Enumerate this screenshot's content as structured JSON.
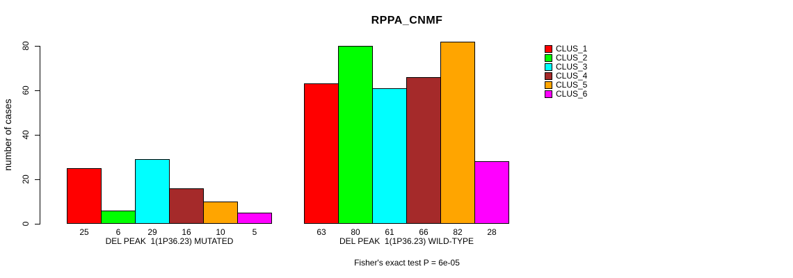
{
  "chart_data": {
    "type": "bar",
    "title": "RPPA_CNMF",
    "ylabel": "number of cases",
    "ylim": [
      0,
      80
    ],
    "yticks": [
      0,
      20,
      40,
      60,
      80
    ],
    "grid": false,
    "legend_position": "right",
    "clusters": [
      {
        "name": "CLUS_1",
        "color": "#FF0000"
      },
      {
        "name": "CLUS_2",
        "color": "#00FF00"
      },
      {
        "name": "CLUS_3",
        "color": "#00FFFF"
      },
      {
        "name": "CLUS_4",
        "color": "#A52A2A"
      },
      {
        "name": "CLUS_5",
        "color": "#FFA500"
      },
      {
        "name": "CLUS_6",
        "color": "#FF00FF"
      }
    ],
    "groups": [
      {
        "label": "DEL PEAK  1(1P36.23) MUTATED",
        "values": [
          25,
          6,
          29,
          16,
          10,
          5
        ]
      },
      {
        "label": "DEL PEAK  1(1P36.23) WILD-TYPE",
        "values": [
          63,
          80,
          61,
          66,
          82,
          28
        ]
      }
    ],
    "annotation": "Fisher's exact test P = 6e-05"
  }
}
